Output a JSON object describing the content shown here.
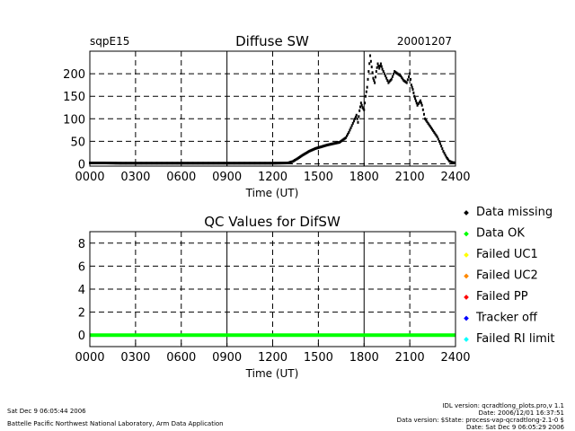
{
  "top": {
    "site": "sqpE15",
    "title": "Diffuse SW",
    "date": "20001207"
  },
  "qc": {
    "title": "QC Values for DifSW"
  },
  "legend": [
    {
      "label": "Data missing",
      "color": "#000000"
    },
    {
      "label": "Data OK",
      "color": "#00ff00"
    },
    {
      "label": "Failed UC1",
      "color": "#ffff00"
    },
    {
      "label": "Failed UC2",
      "color": "#ff8800"
    },
    {
      "label": "Failed PP",
      "color": "#ff0000"
    },
    {
      "label": "Tracker off",
      "color": "#0000ff"
    },
    {
      "label": "Failed RI limit",
      "color": "#00ffff"
    }
  ],
  "footer": {
    "left_line1": "Sat Dec  9 06:05:44 2006",
    "left_line2": "Battelle Pacific Northwest National Laboratory, Arm Data Application",
    "right_line1": "IDL version: qcradtlong_plots.pro,v 1.1",
    "right_line2": "Date: 2006/12/01 16:37:51",
    "right_line3": "Data version: $State: process-vap-qcradtlong-2.1-0 $",
    "right_line4": "Date: Sat Dec  9 06:05:29 2006"
  },
  "chart_data": [
    {
      "type": "scatter",
      "title": "Diffuse SW",
      "xlabel": "Time (UT)",
      "ylabel": "",
      "xlim": [
        0,
        2400
      ],
      "ylim": [
        -5,
        250
      ],
      "x_ticks": [
        "0000",
        "0300",
        "0600",
        "0900",
        "1200",
        "1500",
        "1800",
        "2100",
        "2400"
      ],
      "y_ticks": [
        "0",
        "50",
        "100",
        "150",
        "200"
      ],
      "grid": true,
      "series": [
        {
          "color": "#000000",
          "points": [
            [
              0,
              2
            ],
            [
              100,
              2
            ],
            [
              200,
              1.5
            ],
            [
              300,
              1.5
            ],
            [
              400,
              1.5
            ],
            [
              500,
              1.5
            ],
            [
              600,
              1.5
            ],
            [
              700,
              1.5
            ],
            [
              800,
              1.5
            ],
            [
              900,
              1.5
            ],
            [
              1000,
              1.5
            ],
            [
              1100,
              1.5
            ],
            [
              1200,
              1.5
            ],
            [
              1300,
              2
            ],
            [
              1330,
              5
            ],
            [
              1360,
              11
            ],
            [
              1400,
              20
            ],
            [
              1440,
              28
            ],
            [
              1480,
              34
            ],
            [
              1520,
              38
            ],
            [
              1560,
              42
            ],
            [
              1600,
              45
            ],
            [
              1640,
              48
            ],
            [
              1680,
              58
            ],
            [
              1700,
              70
            ],
            [
              1720,
              85
            ],
            [
              1740,
              100
            ],
            [
              1750,
              108
            ],
            [
              1760,
              92
            ],
            [
              1770,
              118
            ],
            [
              1780,
              135
            ],
            [
              1790,
              125
            ],
            [
              1800,
              120
            ],
            [
              1810,
              150
            ],
            [
              1820,
              170
            ],
            [
              1830,
              205
            ],
            [
              1840,
              240
            ],
            [
              1850,
              215
            ],
            [
              1860,
              190
            ],
            [
              1870,
              180
            ],
            [
              1880,
              205
            ],
            [
              1890,
              222
            ],
            [
              1900,
              212
            ],
            [
              1910,
              222
            ],
            [
              1920,
              210
            ],
            [
              1940,
              195
            ],
            [
              1960,
              180
            ],
            [
              1980,
              188
            ],
            [
              2000,
              205
            ],
            [
              2020,
              200
            ],
            [
              2040,
              195
            ],
            [
              2060,
              185
            ],
            [
              2080,
              180
            ],
            [
              2100,
              200
            ],
            [
              2110,
              175
            ],
            [
              2120,
              165
            ],
            [
              2130,
              150
            ],
            [
              2140,
              140
            ],
            [
              2150,
              130
            ],
            [
              2170,
              140
            ],
            [
              2180,
              130
            ],
            [
              2200,
              100
            ],
            [
              2220,
              90
            ],
            [
              2240,
              80
            ],
            [
              2260,
              70
            ],
            [
              2280,
              60
            ],
            [
              2300,
              45
            ],
            [
              2320,
              28
            ],
            [
              2340,
              15
            ],
            [
              2360,
              6
            ],
            [
              2380,
              3
            ],
            [
              2400,
              2
            ]
          ]
        }
      ]
    },
    {
      "type": "line",
      "title": "QC Values for DifSW",
      "xlabel": "Time (UT)",
      "ylabel": "",
      "xlim": [
        0,
        2400
      ],
      "ylim": [
        -1,
        9
      ],
      "x_ticks": [
        "0000",
        "0300",
        "0600",
        "0900",
        "1200",
        "1500",
        "1800",
        "2100",
        "2400"
      ],
      "y_ticks": [
        "0",
        "2",
        "4",
        "6",
        "8"
      ],
      "grid": true,
      "series": [
        {
          "color": "#00ff00",
          "x": [
            0,
            2400
          ],
          "y": [
            0,
            0
          ]
        }
      ]
    }
  ]
}
